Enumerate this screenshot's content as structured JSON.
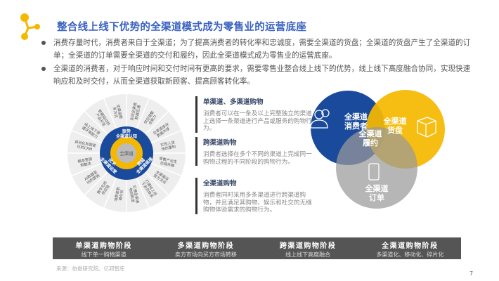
{
  "title": "整合线上线下优势的全渠道模式成为零售业的运营底座",
  "bullets": [
    "消费存量时代，消费者来自于全渠道；为了提高消费者的转化率和忠诚度，需要全渠道的货盘；全渠道的货盘产生了全渠道的订单；全渠道的订单需要全渠道的交付和履约，因此全渠道模式成为零售业的运营底座。",
    "全渠道的消费者，对于响应时间和交付时间有更高的要求，需要零售业整合线上线下的优势，线上线下高度融合协同，实现快速响应和及时交付，从而全渠道获取新顾客、提高顾客转化率。"
  ],
  "wheel": {
    "center": "全渠道",
    "inner": [
      "联势\n全渠道认知",
      "跨越\n全渠道链接",
      "优术\n全渠道运营"
    ],
    "segments": [
      "实现全渠道数据互通",
      "供应链整合能力",
      "全渠道库存数据共享",
      "实现人货场的重构",
      "零售产业生态链共融",
      "全渠道运营方法论",
      "打通线上线下会员体系",
      "打通全渠道物流配送",
      "消费者数据分析",
      "数字化的供应链",
      "AI数据驱动的营销",
      "精准营销和触达",
      "自动化和智能化的CRM",
      "线上线下渠道环境能力",
      "数据驱动的产品开发",
      "全渠道服务方式"
    ],
    "colors": {
      "ring": "#1a4a9c",
      "gold": "#f5b800",
      "core": "#bbbbbb",
      "segment": "#eeeeee"
    }
  },
  "descriptions": [
    {
      "title": "单渠道、多渠道购物",
      "text": "消费者可以在一条及以上完整独立的渠道上选择一条渠道进行产品或服务的购物行为。"
    },
    {
      "title": "跨渠道购物",
      "text": "消费者选择在多个不同的渠道上完成同一购物过程的不同阶段的购物行为。"
    },
    {
      "title": "全渠道购物",
      "text": "消费者同时采用多条渠道进行跨渠道购物，并且满足其购物、娱乐和社交的无缝购物体验需求的购物行为。"
    }
  ],
  "venn": [
    {
      "label": "全渠道\n消费者",
      "icon": "users-icon",
      "color": "#1a4a9c"
    },
    {
      "label": "全渠道\n货盘",
      "icon": "box-icon",
      "color": "#f5b800"
    },
    {
      "label": "全渠道\n订单",
      "icon": "tablet-icon",
      "color": "#aaaaaa"
    },
    {
      "label": "全渠道\n履约",
      "icon": "",
      "color": "#1c3f78"
    }
  ],
  "stages": [
    {
      "title": "单渠道购物阶段",
      "sub": "线下单一购物渠道"
    },
    {
      "title": "多渠道购物阶段",
      "sub": "卖方市场向买方市场转移"
    },
    {
      "title": "跨渠道购物阶段",
      "sub": "线上线下高度融合"
    },
    {
      "title": "全渠道购物阶段",
      "sub": "多渠道化、移动化、碎片化"
    }
  ],
  "source": "来源：伯俊研究院、亿邦智库",
  "page_number": "7"
}
